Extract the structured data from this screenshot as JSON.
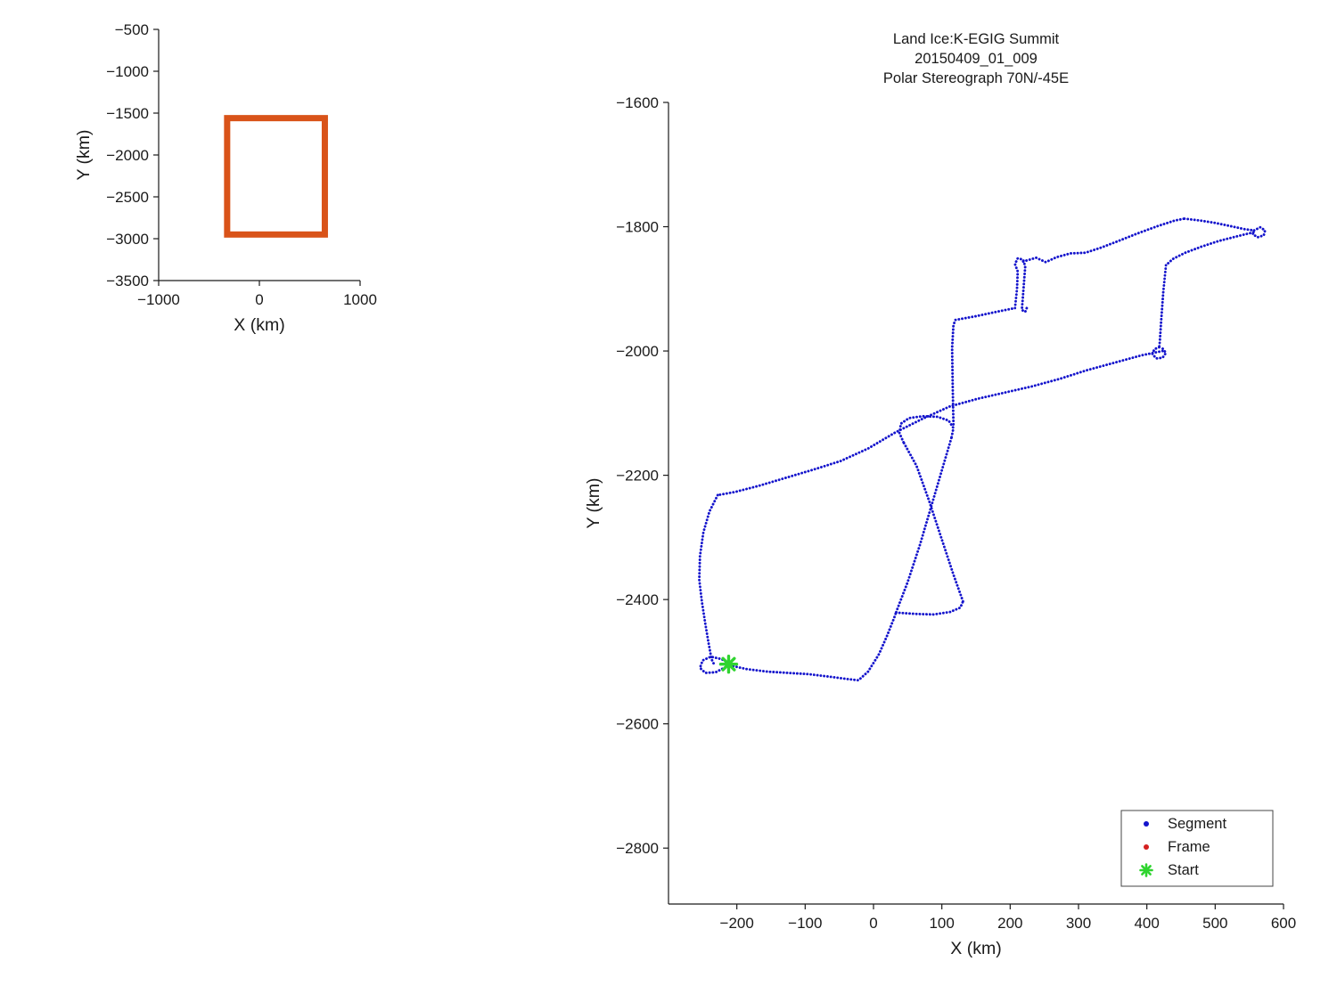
{
  "figure": {
    "background": "#ffffff"
  },
  "chart_data": [
    {
      "type": "line",
      "name": "overview-map",
      "xlabel": "X (km)",
      "ylabel": "Y (km)",
      "xlim": [
        -1000,
        1000
      ],
      "ylim": [
        -3500,
        -500
      ],
      "xticks": [
        -1000,
        0,
        1000
      ],
      "yticks": [
        -500,
        -1000,
        -1500,
        -2000,
        -2500,
        -3000,
        -3500
      ],
      "grid": false,
      "shapes": [
        {
          "type": "rect",
          "x0": -320,
          "x1": 650,
          "y0": -2950,
          "y1": -1560,
          "color": "#D95319",
          "linewidth": 7
        }
      ]
    },
    {
      "type": "scatter-track",
      "name": "flight-track",
      "title_lines": [
        "Land Ice:K-EGIG Summit",
        "20150409_01_009",
        "Polar Stereograph 70N/-45E"
      ],
      "xlabel": "X (km)",
      "ylabel": "Y (km)",
      "xlim": [
        -300,
        600
      ],
      "ylim": [
        -2890,
        -1600
      ],
      "xticks": [
        -200,
        -100,
        0,
        100,
        200,
        300,
        400,
        500,
        600
      ],
      "yticks": [
        -1600,
        -1800,
        -2000,
        -2200,
        -2400,
        -2600,
        -2800
      ],
      "grid": false,
      "track_color": "#1414CC",
      "segments": [
        [
          [
            -208,
            -2505
          ],
          [
            -222,
            -2496
          ],
          [
            -238,
            -2492
          ],
          [
            -250,
            -2498
          ],
          [
            -254,
            -2510
          ],
          [
            -246,
            -2518
          ],
          [
            -231,
            -2517
          ],
          [
            -217,
            -2509
          ],
          [
            -210,
            -2506
          ]
        ],
        [
          [
            -210,
            -2506
          ],
          [
            -185,
            -2512
          ],
          [
            -155,
            -2516
          ],
          [
            -125,
            -2518
          ],
          [
            -95,
            -2520
          ],
          [
            -65,
            -2524
          ],
          [
            -38,
            -2528
          ],
          [
            -22,
            -2530
          ],
          [
            -8,
            -2516
          ],
          [
            8,
            -2488
          ],
          [
            20,
            -2458
          ],
          [
            30,
            -2430
          ],
          [
            33,
            -2421
          ]
        ],
        [
          [
            33,
            -2421
          ],
          [
            60,
            -2423
          ],
          [
            88,
            -2424
          ],
          [
            112,
            -2420
          ],
          [
            127,
            -2413
          ],
          [
            131,
            -2403
          ]
        ],
        [
          [
            131,
            -2403
          ],
          [
            117,
            -2360
          ],
          [
            99,
            -2300
          ],
          [
            81,
            -2240
          ],
          [
            63,
            -2185
          ],
          [
            48,
            -2155
          ],
          [
            44,
            -2147
          ]
        ],
        [
          [
            44,
            -2147
          ],
          [
            38,
            -2132
          ],
          [
            40,
            -2117
          ],
          [
            52,
            -2108
          ],
          [
            72,
            -2105
          ],
          [
            94,
            -2106
          ],
          [
            110,
            -2112
          ],
          [
            117,
            -2124
          ],
          [
            114,
            -2140
          ]
        ],
        [
          [
            114,
            -2140
          ],
          [
            100,
            -2192
          ],
          [
            84,
            -2252
          ],
          [
            68,
            -2312
          ],
          [
            50,
            -2372
          ],
          [
            36,
            -2412
          ],
          [
            33,
            -2421
          ]
        ],
        [
          [
            117,
            -2118
          ],
          [
            116,
            -2060
          ],
          [
            115,
            -1995
          ],
          [
            117,
            -1958
          ],
          [
            120,
            -1950
          ]
        ],
        [
          [
            120,
            -1950
          ],
          [
            150,
            -1944
          ],
          [
            180,
            -1937
          ],
          [
            207,
            -1931
          ]
        ],
        [
          [
            207,
            -1931
          ],
          [
            210,
            -1900
          ],
          [
            211,
            -1872
          ],
          [
            207,
            -1860
          ],
          [
            211,
            -1851
          ],
          [
            219,
            -1853
          ],
          [
            222,
            -1864
          ],
          [
            220,
            -1892
          ],
          [
            218,
            -1922
          ],
          [
            217,
            -1934
          ],
          [
            222,
            -1937
          ],
          [
            225,
            -1929
          ]
        ],
        [
          [
            219,
            -1856
          ],
          [
            238,
            -1850
          ],
          [
            252,
            -1857
          ],
          [
            268,
            -1849
          ],
          [
            288,
            -1843
          ],
          [
            310,
            -1842
          ],
          [
            332,
            -1834
          ],
          [
            356,
            -1824
          ],
          [
            386,
            -1811
          ],
          [
            416,
            -1799
          ],
          [
            441,
            -1790
          ],
          [
            455,
            -1787
          ]
        ],
        [
          [
            455,
            -1787
          ],
          [
            478,
            -1790
          ],
          [
            500,
            -1794
          ],
          [
            522,
            -1799
          ],
          [
            543,
            -1804
          ],
          [
            557,
            -1806
          ]
        ],
        [
          [
            557,
            -1806
          ],
          [
            566,
            -1801
          ],
          [
            573,
            -1806
          ],
          [
            571,
            -1814
          ],
          [
            562,
            -1817
          ],
          [
            555,
            -1812
          ],
          [
            557,
            -1806
          ]
        ],
        [
          [
            556,
            -1809
          ],
          [
            530,
            -1816
          ],
          [
            505,
            -1823
          ],
          [
            480,
            -1832
          ],
          [
            456,
            -1842
          ],
          [
            438,
            -1852
          ],
          [
            428,
            -1862
          ]
        ],
        [
          [
            428,
            -1862
          ],
          [
            424,
            -1905
          ],
          [
            421,
            -1950
          ],
          [
            419,
            -1985
          ],
          [
            418,
            -1994
          ]
        ],
        [
          [
            418,
            -1994
          ],
          [
            411,
            -1997
          ],
          [
            408,
            -2005
          ],
          [
            414,
            -2012
          ],
          [
            423,
            -2011
          ],
          [
            428,
            -2003
          ],
          [
            423,
            -1996
          ]
        ],
        [
          [
            423,
            -2000
          ],
          [
            392,
            -2007
          ],
          [
            352,
            -2019
          ],
          [
            312,
            -2031
          ],
          [
            272,
            -2045
          ],
          [
            232,
            -2057
          ],
          [
            192,
            -2067
          ],
          [
            152,
            -2077
          ],
          [
            112,
            -2089
          ],
          [
            72,
            -2109
          ],
          [
            32,
            -2131
          ],
          [
            -8,
            -2157
          ],
          [
            -48,
            -2177
          ],
          [
            -88,
            -2191
          ],
          [
            -128,
            -2204
          ],
          [
            -168,
            -2217
          ],
          [
            -203,
            -2227
          ],
          [
            -228,
            -2232
          ]
        ],
        [
          [
            -228,
            -2232
          ],
          [
            -240,
            -2258
          ],
          [
            -249,
            -2292
          ],
          [
            -254,
            -2330
          ],
          [
            -255,
            -2368
          ],
          [
            -251,
            -2405
          ],
          [
            -246,
            -2440
          ],
          [
            -241,
            -2472
          ],
          [
            -237,
            -2496
          ],
          [
            -233,
            -2505
          ]
        ]
      ],
      "start": {
        "x": -212,
        "y": -2504,
        "color": "#2FD42F"
      },
      "legend": {
        "position": "lower-right",
        "entries": [
          {
            "label": "Segment",
            "marker": "dot",
            "color": "#1414CC"
          },
          {
            "label": "Frame",
            "marker": "dot",
            "color": "#D42020"
          },
          {
            "label": "Start",
            "marker": "star",
            "color": "#2FD42F"
          }
        ]
      }
    }
  ]
}
